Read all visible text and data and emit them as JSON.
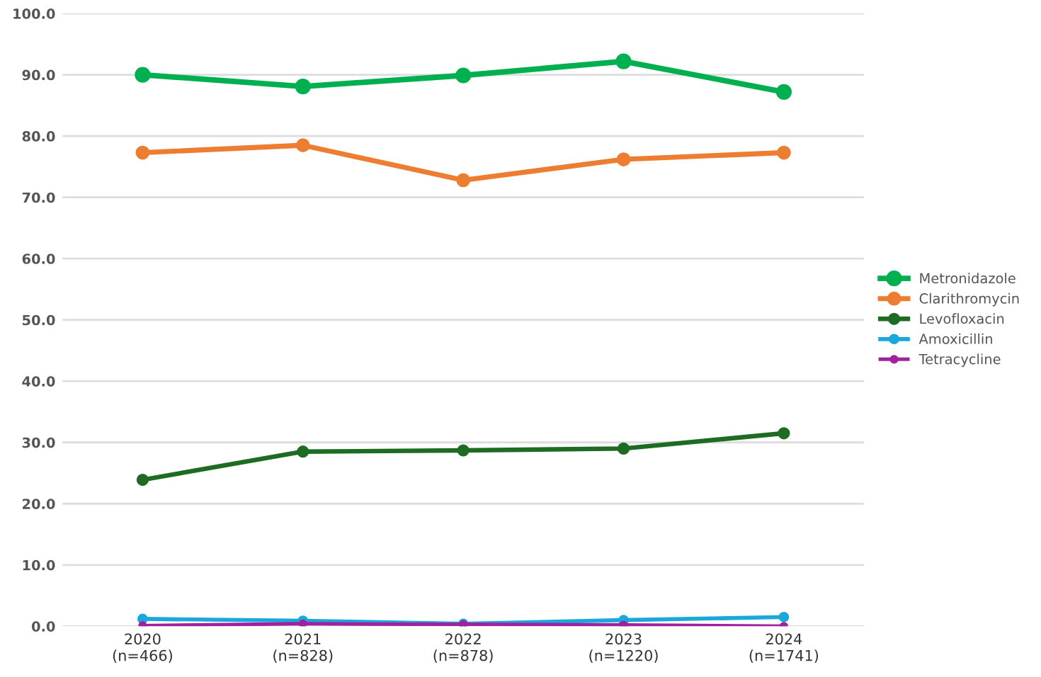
{
  "chart_data": {
    "type": "line",
    "categories": [
      "2020\n(n=466)",
      "2021\n(n=828)",
      "2022\n(n=878)",
      "2023\n(n=1220)",
      "2024\n(n=1741)"
    ],
    "series": [
      {
        "name": "Metronidazole",
        "color": "#00b050",
        "values": [
          90.0,
          88.1,
          89.9,
          92.2,
          87.2
        ]
      },
      {
        "name": "Clarithromycin",
        "color": "#ed7d31",
        "values": [
          77.3,
          78.5,
          72.8,
          76.2,
          77.3
        ]
      },
      {
        "name": "Levofloxacin",
        "color": "#1e6b24",
        "values": [
          23.9,
          28.5,
          28.7,
          29.0,
          31.5
        ]
      },
      {
        "name": "Amoxicillin",
        "color": "#1aa7dc",
        "values": [
          1.2,
          0.9,
          0.4,
          1.0,
          1.5
        ]
      },
      {
        "name": "Tetracycline",
        "color": "#a020a0",
        "values": [
          0.1,
          0.4,
          0.3,
          0.2,
          0.0
        ]
      }
    ],
    "ylim": [
      0,
      100
    ],
    "yticks": [
      {
        "value": 0,
        "label": "0.0"
      },
      {
        "value": 10,
        "label": "10.0"
      },
      {
        "value": 20,
        "label": "20.0"
      },
      {
        "value": 30,
        "label": "30.0"
      },
      {
        "value": 40,
        "label": "40.0"
      },
      {
        "value": 50,
        "label": "50.0"
      },
      {
        "value": 60,
        "label": "60.0"
      },
      {
        "value": 70,
        "label": "70.0"
      },
      {
        "value": 80,
        "label": "80.0"
      },
      {
        "value": 90,
        "label": "90.0"
      },
      {
        "value": 100,
        "label": "100.0"
      }
    ],
    "grid": "y",
    "legend": "right",
    "marker": "circle",
    "line_style": "solid"
  }
}
